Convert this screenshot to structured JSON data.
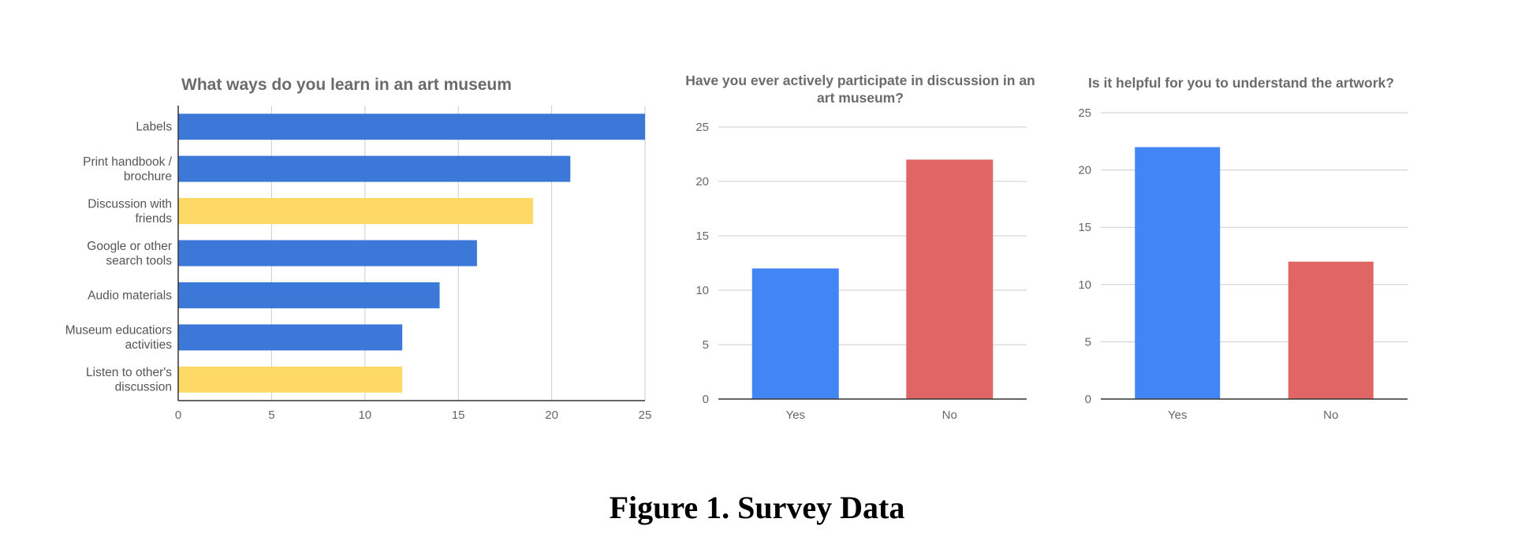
{
  "colors": {
    "bar_blue": "#3c78d8",
    "bar_yellow": "#ffd966",
    "col_blue": "#4285f4",
    "col_red": "#e06666",
    "grid": "#cccccc",
    "axis": "#333333"
  },
  "caption": "Figure 1. Survey Data",
  "chart_data": [
    {
      "type": "bar",
      "orientation": "horizontal",
      "title": "What ways do you learn in an art museum",
      "categories": [
        [
          "Labels"
        ],
        [
          "Print handbook /",
          "brochure"
        ],
        [
          "Discussion with",
          "friends"
        ],
        [
          "Google or other",
          "search tools"
        ],
        [
          "Audio materials"
        ],
        [
          "Museum educatiors",
          "activities"
        ],
        [
          "Listen to other's",
          "discussion"
        ]
      ],
      "values": [
        25,
        21,
        19,
        16,
        14,
        12,
        12
      ],
      "bar_colors": [
        "#3c78d8",
        "#3c78d8",
        "#ffd966",
        "#3c78d8",
        "#3c78d8",
        "#3c78d8",
        "#ffd966"
      ],
      "xlim": [
        0,
        25
      ],
      "xticks": [
        0,
        5,
        10,
        15,
        20,
        25
      ],
      "grid": true
    },
    {
      "type": "bar",
      "orientation": "vertical",
      "title": [
        "Have you ever actively participate in discussion in an",
        "art museum?"
      ],
      "categories": [
        "Yes",
        "No"
      ],
      "values": [
        12,
        22
      ],
      "bar_colors": [
        "#4285f4",
        "#e06666"
      ],
      "ylim": [
        0,
        25
      ],
      "yticks": [
        0,
        5,
        10,
        15,
        20,
        25
      ],
      "grid": true
    },
    {
      "type": "bar",
      "orientation": "vertical",
      "title": [
        "Is it helpful for you to understand the artwork?"
      ],
      "categories": [
        "Yes",
        "No"
      ],
      "values": [
        22,
        12
      ],
      "bar_colors": [
        "#4285f4",
        "#e06666"
      ],
      "ylim": [
        0,
        25
      ],
      "yticks": [
        0,
        5,
        10,
        15,
        20,
        25
      ],
      "grid": true
    }
  ]
}
